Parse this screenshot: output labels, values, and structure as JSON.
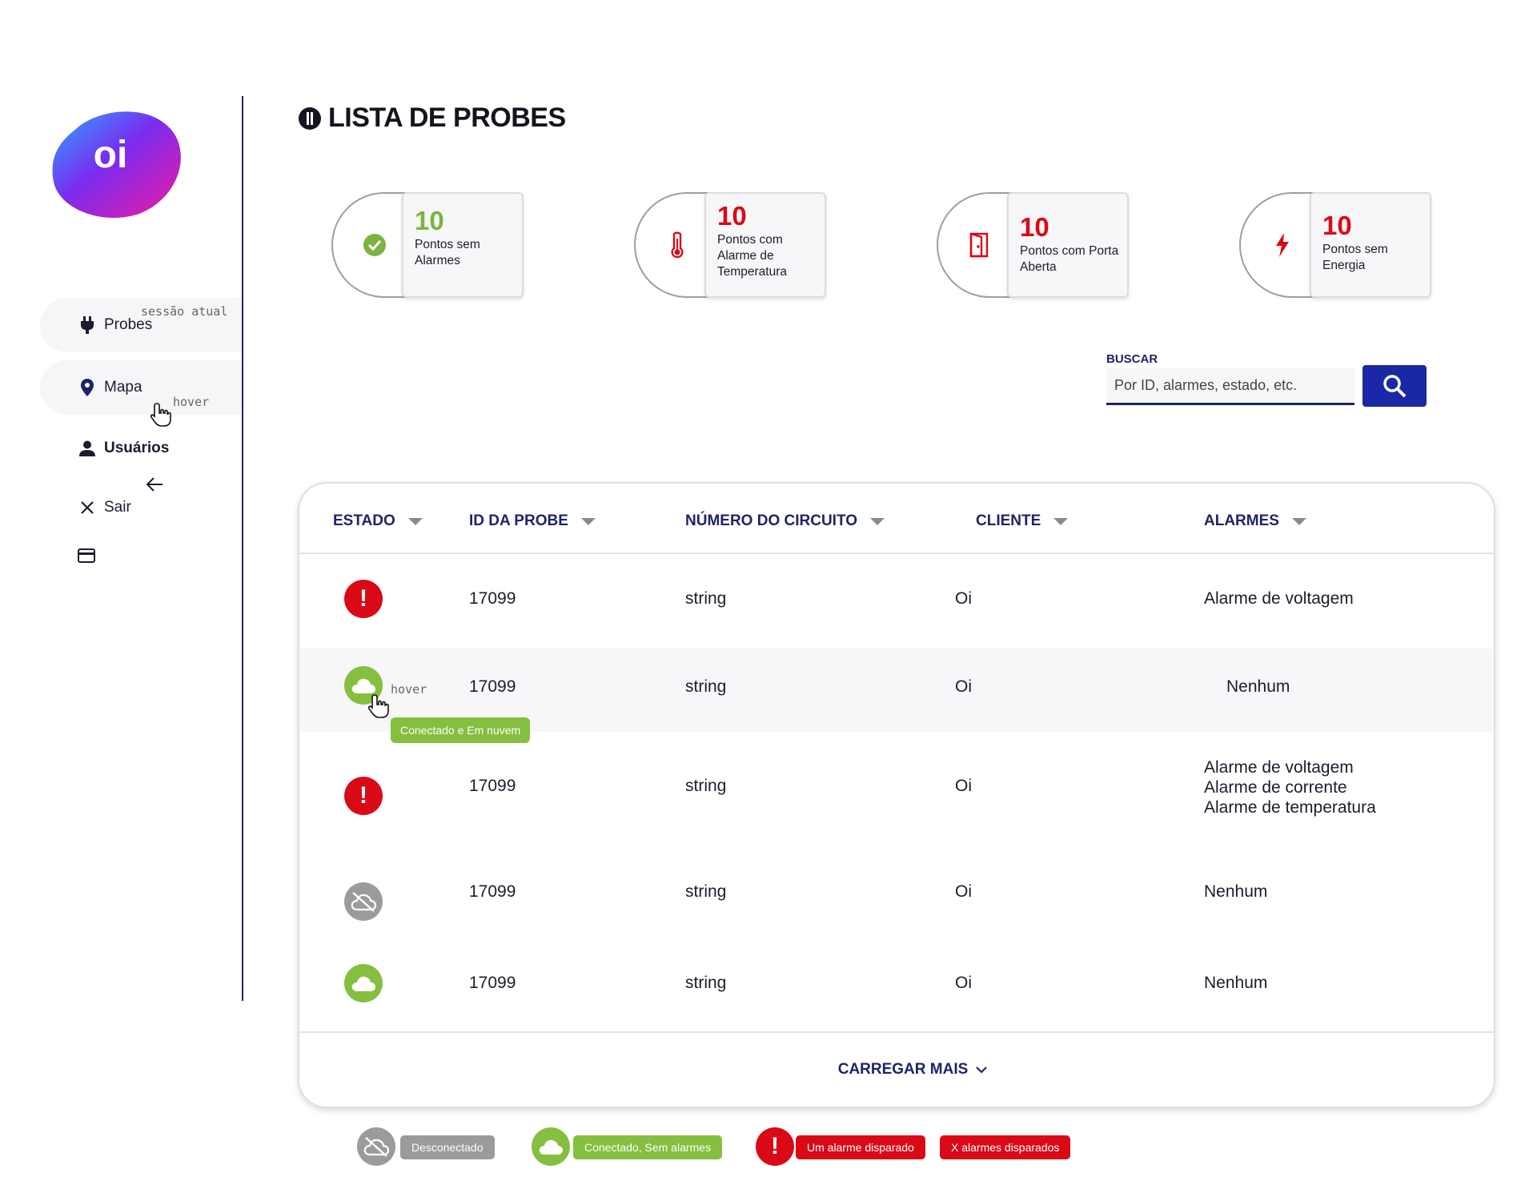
{
  "sidebar": {
    "logo_text": "oi",
    "session_annotation": "sessão atual",
    "hover_annotation": "hover",
    "items": [
      {
        "label": "Probes",
        "icon": "plug-icon"
      },
      {
        "label": "Mapa",
        "icon": "map-pin-icon"
      },
      {
        "label": "Usuários",
        "icon": "user-icon"
      },
      {
        "label": "Sair",
        "icon": "close-icon"
      }
    ],
    "extra_icons": [
      "arrow-left-icon",
      "credit-card-icon"
    ]
  },
  "header": {
    "title": "LISTA DE PROBES"
  },
  "summary_cards": [
    {
      "count": "10",
      "label": "Pontos sem Alarmes",
      "icon": "check-circle-icon",
      "color": "#7cb342"
    },
    {
      "count": "10",
      "label": "Pontos com Alarme de Temperatura",
      "icon": "thermometer-icon",
      "color": "#d90a16"
    },
    {
      "count": "10",
      "label": "Pontos com Porta Aberta",
      "icon": "door-icon",
      "color": "#d90a16"
    },
    {
      "count": "10",
      "label": "Pontos sem Energia",
      "icon": "lightning-icon",
      "color": "#d90a16"
    }
  ],
  "search": {
    "label": "BUSCAR",
    "placeholder": "Por ID, alarmes, estado, etc."
  },
  "table": {
    "columns": [
      "ESTADO",
      "ID DA PROBE",
      "NÚMERO DO CIRCUITO",
      "CLIENTE",
      "ALARMES"
    ],
    "rows": [
      {
        "status": "alarm",
        "id": "17099",
        "circuit": "string",
        "client": "Oi",
        "alarms": [
          "Alarme de voltagem"
        ]
      },
      {
        "status": "connected",
        "id": "17099",
        "circuit": "string",
        "client": "Oi",
        "alarms": [
          "Nenhum"
        ]
      },
      {
        "status": "alarm",
        "id": "17099",
        "circuit": "string",
        "client": "Oi",
        "alarms": [
          "Alarme de voltagem",
          "Alarme de corrente",
          "Alarme de temperatura"
        ]
      },
      {
        "status": "disconnected",
        "id": "17099",
        "circuit": "string",
        "client": "Oi",
        "alarms": [
          "Nenhum"
        ]
      },
      {
        "status": "connected",
        "id": "17099",
        "circuit": "string",
        "client": "Oi",
        "alarms": [
          "Nenhum"
        ]
      }
    ],
    "hover_annotation": "hover",
    "tooltip": "Conectado e Em nuvem",
    "load_more": "CARREGAR MAIS"
  },
  "legend": [
    {
      "label": "Desconectado",
      "color": "#9b9b9b"
    },
    {
      "label": "Conectado, Sem alarmes",
      "color": "#85bf3f"
    },
    {
      "label": "Um alarme disparado",
      "color": "#d90a16"
    },
    {
      "label": "X alarmes disparados",
      "color": "#d90a16"
    }
  ],
  "colors": {
    "navy": "#1e2466",
    "search_button": "#1a28a6",
    "green": "#85bf3f",
    "red": "#d90a16",
    "gray": "#9b9b9b"
  }
}
